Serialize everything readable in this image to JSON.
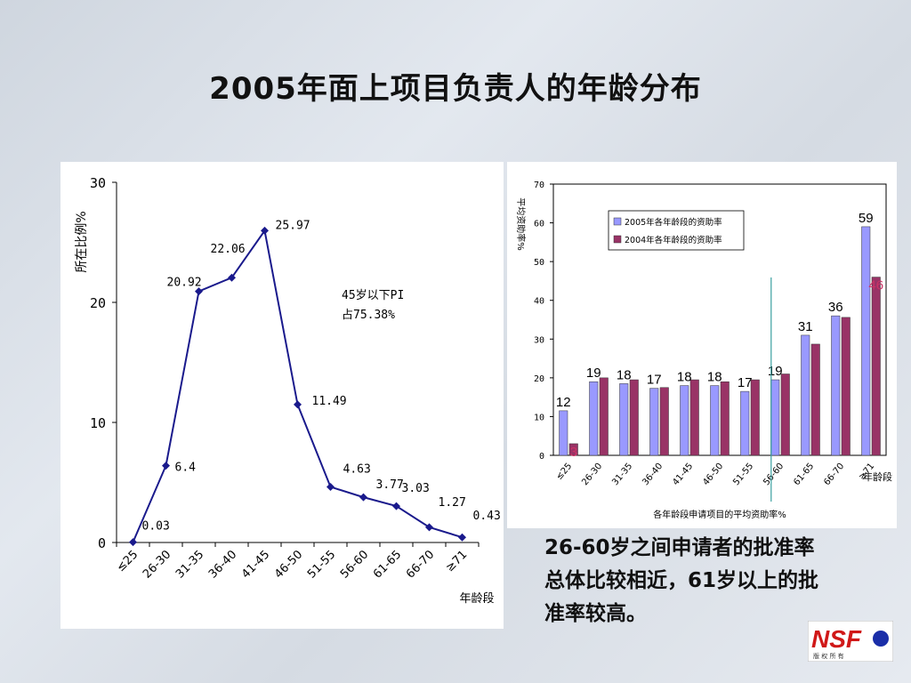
{
  "slide": {
    "title": "2005年面上项目负责人的年龄分布",
    "note_lines": [
      "26-60岁之间申请者的批准率",
      "总体比较相近，61岁以上的批",
      "准率较高。"
    ],
    "logo": {
      "text": "NSF",
      "subtitle": "版 权 所 有"
    }
  },
  "chart_data": [
    {
      "type": "line",
      "ylabel": "所在比例%",
      "xlabel": "年龄段",
      "ylim": [
        0,
        30
      ],
      "yticks": [
        "0",
        "10",
        "20",
        "30"
      ],
      "categories": [
        "≤25",
        "26-30",
        "31-35",
        "36-40",
        "41-45",
        "46-50",
        "51-55",
        "56-60",
        "61-65",
        "66-70",
        "≥71"
      ],
      "values": [
        0.03,
        6.4,
        20.92,
        22.06,
        25.97,
        11.49,
        4.63,
        3.77,
        3.03,
        1.27,
        0.43
      ],
      "data_labels": [
        "0.03",
        "6.4",
        "20.92",
        "22.06",
        "25.97",
        "11.49",
        "4.63",
        "3.77",
        "3.03",
        "1.27",
        "0.43"
      ],
      "annotation_lines": [
        "45岁以下PI",
        "占75.38%"
      ],
      "line_color": "#1a1a8c",
      "grid": false
    },
    {
      "type": "bar",
      "ylabel": "平均资助率%",
      "xlabel": "各年龄段申请项目的平均资助率%",
      "ylim": [
        0,
        70
      ],
      "yticks": [
        "0",
        "10",
        "20",
        "30",
        "40",
        "50",
        "60",
        "70"
      ],
      "categories": [
        "≤25",
        "26-30",
        "31-35",
        "36-40",
        "41-45",
        "46-50",
        "51-55",
        "56-60",
        "61-65",
        "66-70",
        "≥71"
      ],
      "x_axis_end_label": "年龄段",
      "series": [
        {
          "name": "2005年各年龄段的资助率",
          "color": "#9999ff",
          "values": [
            11.5,
            19,
            18.5,
            17.3,
            18,
            18,
            16.5,
            19.5,
            31,
            36,
            59
          ]
        },
        {
          "name": "2004年各年龄段的资助率",
          "color": "#993366",
          "values": [
            3,
            20,
            19.5,
            17.5,
            19.5,
            19,
            19.5,
            21,
            28.7,
            35.6,
            46
          ]
        }
      ],
      "value_labels": [
        {
          "text": "12",
          "series": 0,
          "index": 0
        },
        {
          "text": "3",
          "series": 1,
          "index": 0,
          "color": "#cc3366"
        },
        {
          "text": "19",
          "series": 0,
          "index": 1
        },
        {
          "text": "18",
          "series": 0,
          "index": 2
        },
        {
          "text": "17",
          "series": 0,
          "index": 3
        },
        {
          "text": "18",
          "series": 0,
          "index": 4
        },
        {
          "text": "18",
          "series": 0,
          "index": 5
        },
        {
          "text": "17",
          "series": 0,
          "index": 6
        },
        {
          "text": "19",
          "series": 0,
          "index": 7
        },
        {
          "text": "31",
          "series": 0,
          "index": 8
        },
        {
          "text": "36",
          "series": 0,
          "index": 9
        },
        {
          "text": "59",
          "series": 0,
          "index": 10
        },
        {
          "text": "46",
          "series": 1,
          "index": 10,
          "color": "#cc3366"
        }
      ],
      "divider_after_category": "56-60",
      "legend_position": "top-left",
      "grid": false
    }
  ]
}
